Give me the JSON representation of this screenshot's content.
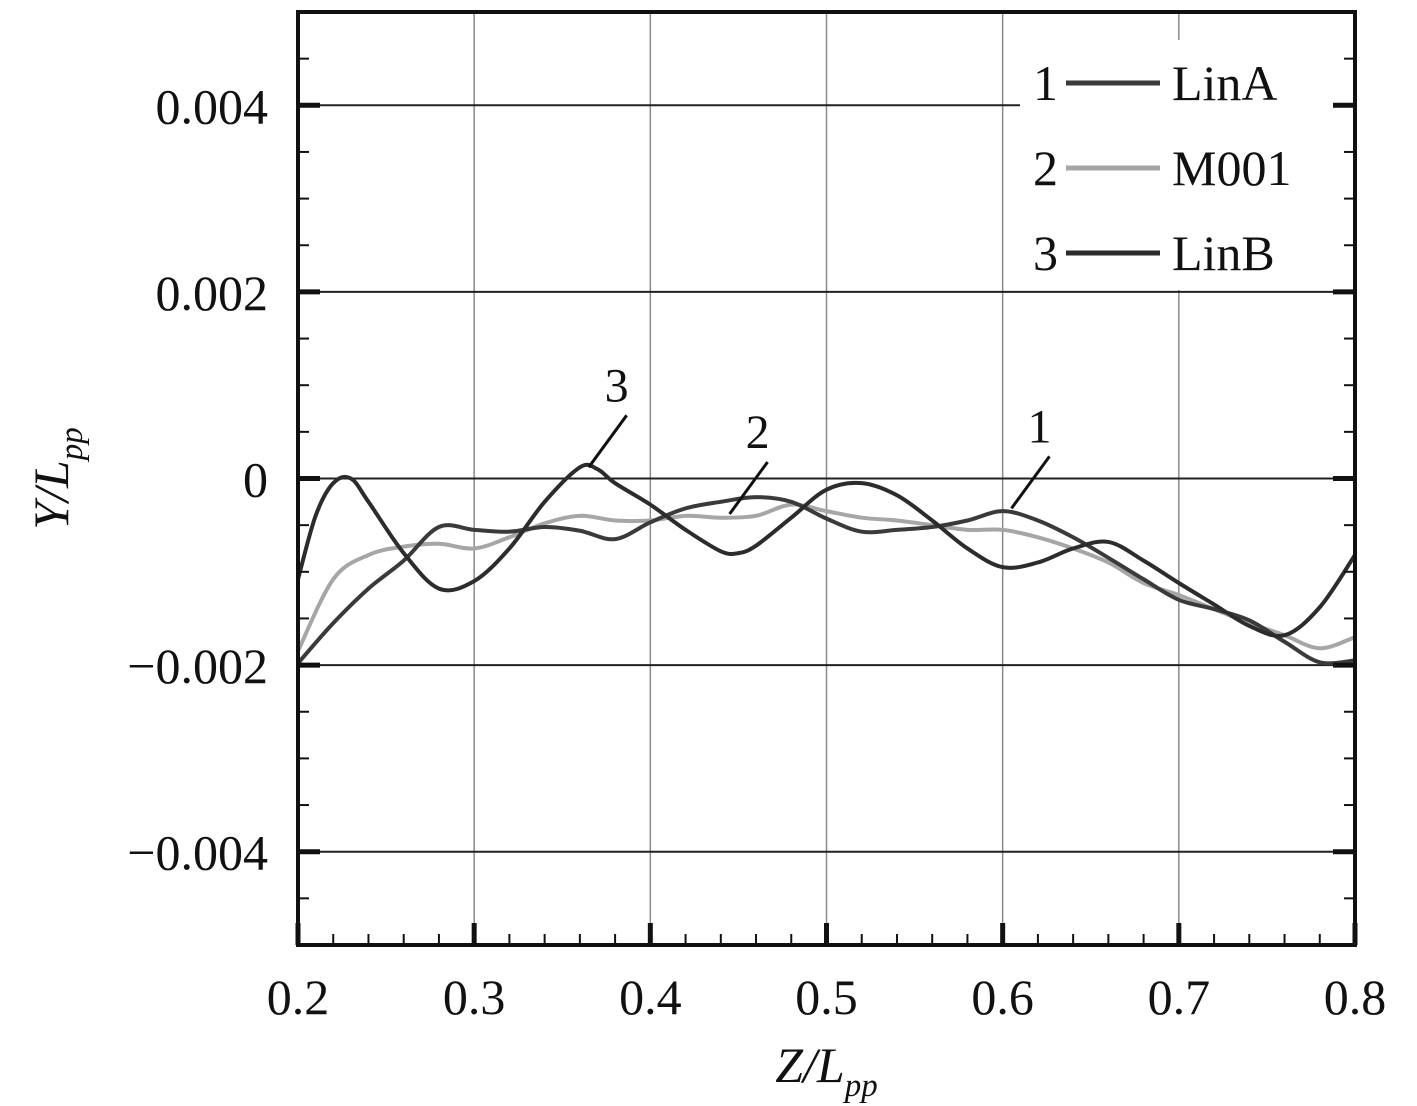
{
  "chart_data": {
    "type": "line",
    "title": "",
    "xlabel_main": "Z/L",
    "xlabel_sub": "pp",
    "ylabel_main": "Y/L",
    "ylabel_sub": "pp",
    "xlim": [
      0.2,
      0.8
    ],
    "ylim": [
      -0.005,
      0.005
    ],
    "x_ticks": [
      0.2,
      0.3,
      0.4,
      0.5,
      0.6,
      0.7,
      0.8
    ],
    "x_tick_labels": [
      "0.2",
      "0.3",
      "0.4",
      "0.5",
      "0.6",
      "0.7",
      "0.8"
    ],
    "y_ticks": [
      0.004,
      0.002,
      0,
      -0.002,
      -0.004
    ],
    "y_tick_labels": [
      "0.004",
      "0.002",
      "0",
      "−0.002",
      "−0.004"
    ],
    "grid": true,
    "legend_position": "top-right",
    "series": [
      {
        "name": "LinA",
        "number": "1",
        "color": "#3a3a3a",
        "points": [
          [
            0.2,
            -0.00198
          ],
          [
            0.22,
            -0.00155
          ],
          [
            0.24,
            -0.00118
          ],
          [
            0.26,
            -0.00088
          ],
          [
            0.28,
            -0.00052
          ],
          [
            0.3,
            -0.00055
          ],
          [
            0.32,
            -0.00057
          ],
          [
            0.34,
            -0.00052
          ],
          [
            0.36,
            -0.00056
          ],
          [
            0.38,
            -0.00065
          ],
          [
            0.4,
            -0.00047
          ],
          [
            0.42,
            -0.00032
          ],
          [
            0.44,
            -0.00025
          ],
          [
            0.46,
            -0.0002
          ],
          [
            0.48,
            -0.00025
          ],
          [
            0.5,
            -0.00043
          ],
          [
            0.52,
            -0.00057
          ],
          [
            0.54,
            -0.00055
          ],
          [
            0.56,
            -0.00052
          ],
          [
            0.58,
            -0.00045
          ],
          [
            0.6,
            -0.00035
          ],
          [
            0.62,
            -0.00045
          ],
          [
            0.64,
            -0.00063
          ],
          [
            0.66,
            -0.00085
          ],
          [
            0.68,
            -0.00108
          ],
          [
            0.7,
            -0.0013
          ],
          [
            0.72,
            -0.0014
          ],
          [
            0.74,
            -0.00152
          ],
          [
            0.76,
            -0.00175
          ],
          [
            0.78,
            -0.00197
          ],
          [
            0.8,
            -0.00195
          ]
        ]
      },
      {
        "name": "M001",
        "number": "2",
        "color": "#a6a6a6",
        "points": [
          [
            0.2,
            -0.00185
          ],
          [
            0.22,
            -0.00108
          ],
          [
            0.24,
            -0.00082
          ],
          [
            0.26,
            -0.00073
          ],
          [
            0.28,
            -0.0007
          ],
          [
            0.3,
            -0.00075
          ],
          [
            0.32,
            -0.00063
          ],
          [
            0.34,
            -0.00048
          ],
          [
            0.36,
            -0.0004
          ],
          [
            0.38,
            -0.00045
          ],
          [
            0.4,
            -0.00045
          ],
          [
            0.42,
            -0.0004
          ],
          [
            0.44,
            -0.00042
          ],
          [
            0.46,
            -0.0004
          ],
          [
            0.48,
            -0.00028
          ],
          [
            0.5,
            -0.00035
          ],
          [
            0.52,
            -0.00042
          ],
          [
            0.54,
            -0.00045
          ],
          [
            0.56,
            -0.0005
          ],
          [
            0.58,
            -0.00055
          ],
          [
            0.6,
            -0.00055
          ],
          [
            0.62,
            -0.00063
          ],
          [
            0.64,
            -0.00075
          ],
          [
            0.66,
            -0.0009
          ],
          [
            0.68,
            -0.00112
          ],
          [
            0.7,
            -0.00125
          ],
          [
            0.72,
            -0.0014
          ],
          [
            0.74,
            -0.00155
          ],
          [
            0.76,
            -0.00168
          ],
          [
            0.78,
            -0.00182
          ],
          [
            0.8,
            -0.0017
          ]
        ]
      },
      {
        "name": "LinB",
        "number": "3",
        "color": "#2c2c2c",
        "points": [
          [
            0.2,
            -0.00108
          ],
          [
            0.21,
            -0.0004
          ],
          [
            0.22,
            -5e-05
          ],
          [
            0.23,
            0.0
          ],
          [
            0.24,
            -0.00025
          ],
          [
            0.26,
            -0.0008
          ],
          [
            0.28,
            -0.00118
          ],
          [
            0.3,
            -0.0011
          ],
          [
            0.32,
            -0.00075
          ],
          [
            0.34,
            -0.00025
          ],
          [
            0.36,
            0.00012
          ],
          [
            0.37,
            0.0001
          ],
          [
            0.38,
            -5e-05
          ],
          [
            0.4,
            -0.00028
          ],
          [
            0.42,
            -0.00055
          ],
          [
            0.44,
            -0.00078
          ],
          [
            0.45,
            -0.0008
          ],
          [
            0.46,
            -0.00072
          ],
          [
            0.48,
            -0.00042
          ],
          [
            0.5,
            -0.00012
          ],
          [
            0.52,
            -5e-05
          ],
          [
            0.54,
            -0.00018
          ],
          [
            0.56,
            -0.00045
          ],
          [
            0.58,
            -0.00075
          ],
          [
            0.6,
            -0.00095
          ],
          [
            0.62,
            -0.0009
          ],
          [
            0.64,
            -0.00075
          ],
          [
            0.66,
            -0.00068
          ],
          [
            0.68,
            -0.00088
          ],
          [
            0.7,
            -0.00112
          ],
          [
            0.72,
            -0.00135
          ],
          [
            0.74,
            -0.00158
          ],
          [
            0.76,
            -0.00168
          ],
          [
            0.78,
            -0.00138
          ],
          [
            0.8,
            -0.00082
          ]
        ]
      }
    ],
    "annotations": [
      {
        "text": "3",
        "series": "LinB",
        "at": [
          0.365,
          0.00012
        ]
      },
      {
        "text": "2",
        "series": "M001",
        "at": [
          0.445,
          -0.00038
        ]
      },
      {
        "text": "1",
        "series": "LinA",
        "at": [
          0.605,
          -0.00032
        ]
      }
    ]
  }
}
